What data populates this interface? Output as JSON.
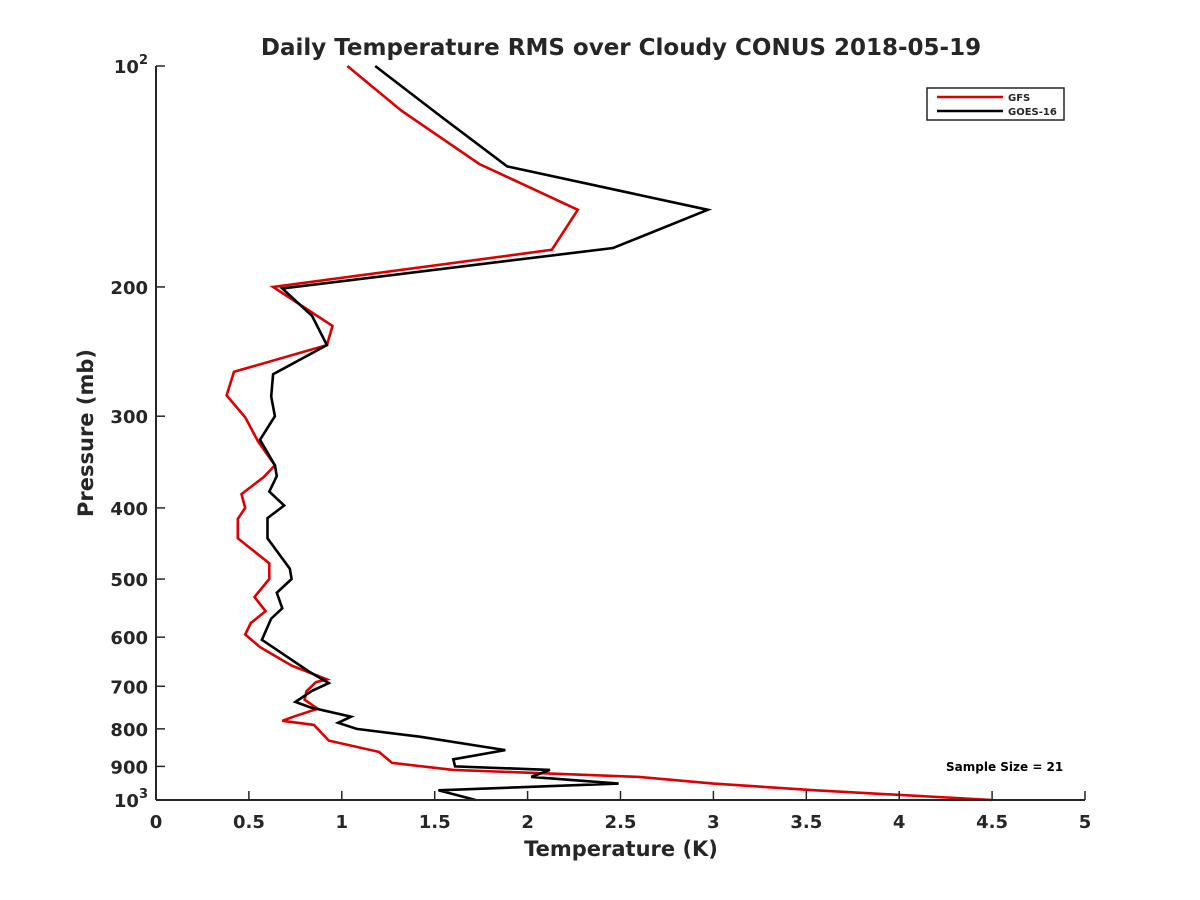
{
  "chart_data": {
    "type": "line",
    "title": "Daily Temperature RMS over Cloudy CONUS 2018-05-19",
    "xlabel": "Temperature (K)",
    "ylabel": "Pressure (mb)",
    "xlim": [
      0,
      5
    ],
    "ylim": [
      100,
      1000
    ],
    "y_scale": "log",
    "y_reversed": true,
    "x_ticks": [
      0,
      0.5,
      1,
      1.5,
      2,
      2.5,
      3,
      3.5,
      4,
      4.5,
      5
    ],
    "x_tick_labels": [
      "0",
      "0.5",
      "1",
      "1.5",
      "2",
      "2.5",
      "3",
      "3.5",
      "4",
      "4.5",
      "5"
    ],
    "y_ticks": [
      {
        "value": 100,
        "base": "10",
        "exp": "2"
      },
      {
        "value": 200,
        "label": "200"
      },
      {
        "value": 300,
        "label": "300"
      },
      {
        "value": 400,
        "label": "400"
      },
      {
        "value": 500,
        "label": "500"
      },
      {
        "value": 600,
        "label": "600"
      },
      {
        "value": 700,
        "label": "700"
      },
      {
        "value": 800,
        "label": "800"
      },
      {
        "value": 900,
        "label": "900"
      },
      {
        "value": 1000,
        "base": "10",
        "exp": "3"
      }
    ],
    "grid": false,
    "legend_position": "top-right",
    "annotation": "Sample Size = 21",
    "series": [
      {
        "name": "GFS",
        "color": "#dd0000",
        "points": [
          [
            1.03,
            100
          ],
          [
            1.32,
            115
          ],
          [
            1.74,
            136
          ],
          [
            2.27,
            157
          ],
          [
            2.13,
            178
          ],
          [
            0.63,
            200
          ],
          [
            0.95,
            226
          ],
          [
            0.92,
            240
          ],
          [
            0.42,
            261
          ],
          [
            0.38,
            281
          ],
          [
            0.48,
            301
          ],
          [
            0.55,
            325
          ],
          [
            0.64,
            350
          ],
          [
            0.58,
            363
          ],
          [
            0.46,
            383
          ],
          [
            0.48,
            400
          ],
          [
            0.44,
            414
          ],
          [
            0.44,
            440
          ],
          [
            0.61,
            476
          ],
          [
            0.61,
            500
          ],
          [
            0.53,
            529
          ],
          [
            0.59,
            553
          ],
          [
            0.51,
            574
          ],
          [
            0.48,
            595
          ],
          [
            0.56,
            619
          ],
          [
            0.73,
            656
          ],
          [
            0.92,
            685
          ],
          [
            0.86,
            691
          ],
          [
            0.81,
            711
          ],
          [
            0.8,
            730
          ],
          [
            0.87,
            751
          ],
          [
            0.74,
            770
          ],
          [
            0.68,
            780
          ],
          [
            0.85,
            790
          ],
          [
            0.93,
            830
          ],
          [
            1.2,
            860
          ],
          [
            1.27,
            890
          ],
          [
            1.6,
            910
          ],
          [
            2.6,
            930
          ],
          [
            3.0,
            950
          ],
          [
            3.55,
            970
          ],
          [
            4.5,
            1000
          ]
        ]
      },
      {
        "name": "GOES-16",
        "color": "#000000",
        "points": [
          [
            1.18,
            100
          ],
          [
            1.53,
            117
          ],
          [
            1.89,
            137
          ],
          [
            2.97,
            157
          ],
          [
            2.46,
            177
          ],
          [
            0.68,
            201
          ],
          [
            0.84,
            219
          ],
          [
            0.92,
            240
          ],
          [
            0.63,
            263
          ],
          [
            0.62,
            282
          ],
          [
            0.64,
            300
          ],
          [
            0.56,
            323
          ],
          [
            0.64,
            350
          ],
          [
            0.65,
            362
          ],
          [
            0.61,
            380
          ],
          [
            0.69,
            397
          ],
          [
            0.6,
            413
          ],
          [
            0.6,
            440
          ],
          [
            0.72,
            484
          ],
          [
            0.73,
            500
          ],
          [
            0.65,
            522
          ],
          [
            0.68,
            548
          ],
          [
            0.62,
            566
          ],
          [
            0.57,
            605
          ],
          [
            0.83,
            670
          ],
          [
            0.93,
            693
          ],
          [
            0.84,
            710
          ],
          [
            0.75,
            735
          ],
          [
            0.83,
            748
          ],
          [
            1.05,
            770
          ],
          [
            0.98,
            785
          ],
          [
            1.08,
            800
          ],
          [
            1.42,
            820
          ],
          [
            1.88,
            855
          ],
          [
            1.6,
            880
          ],
          [
            1.61,
            900
          ],
          [
            2.12,
            910
          ],
          [
            2.02,
            930
          ],
          [
            2.49,
            950
          ],
          [
            1.52,
            970
          ],
          [
            1.72,
            1000
          ]
        ]
      }
    ]
  }
}
